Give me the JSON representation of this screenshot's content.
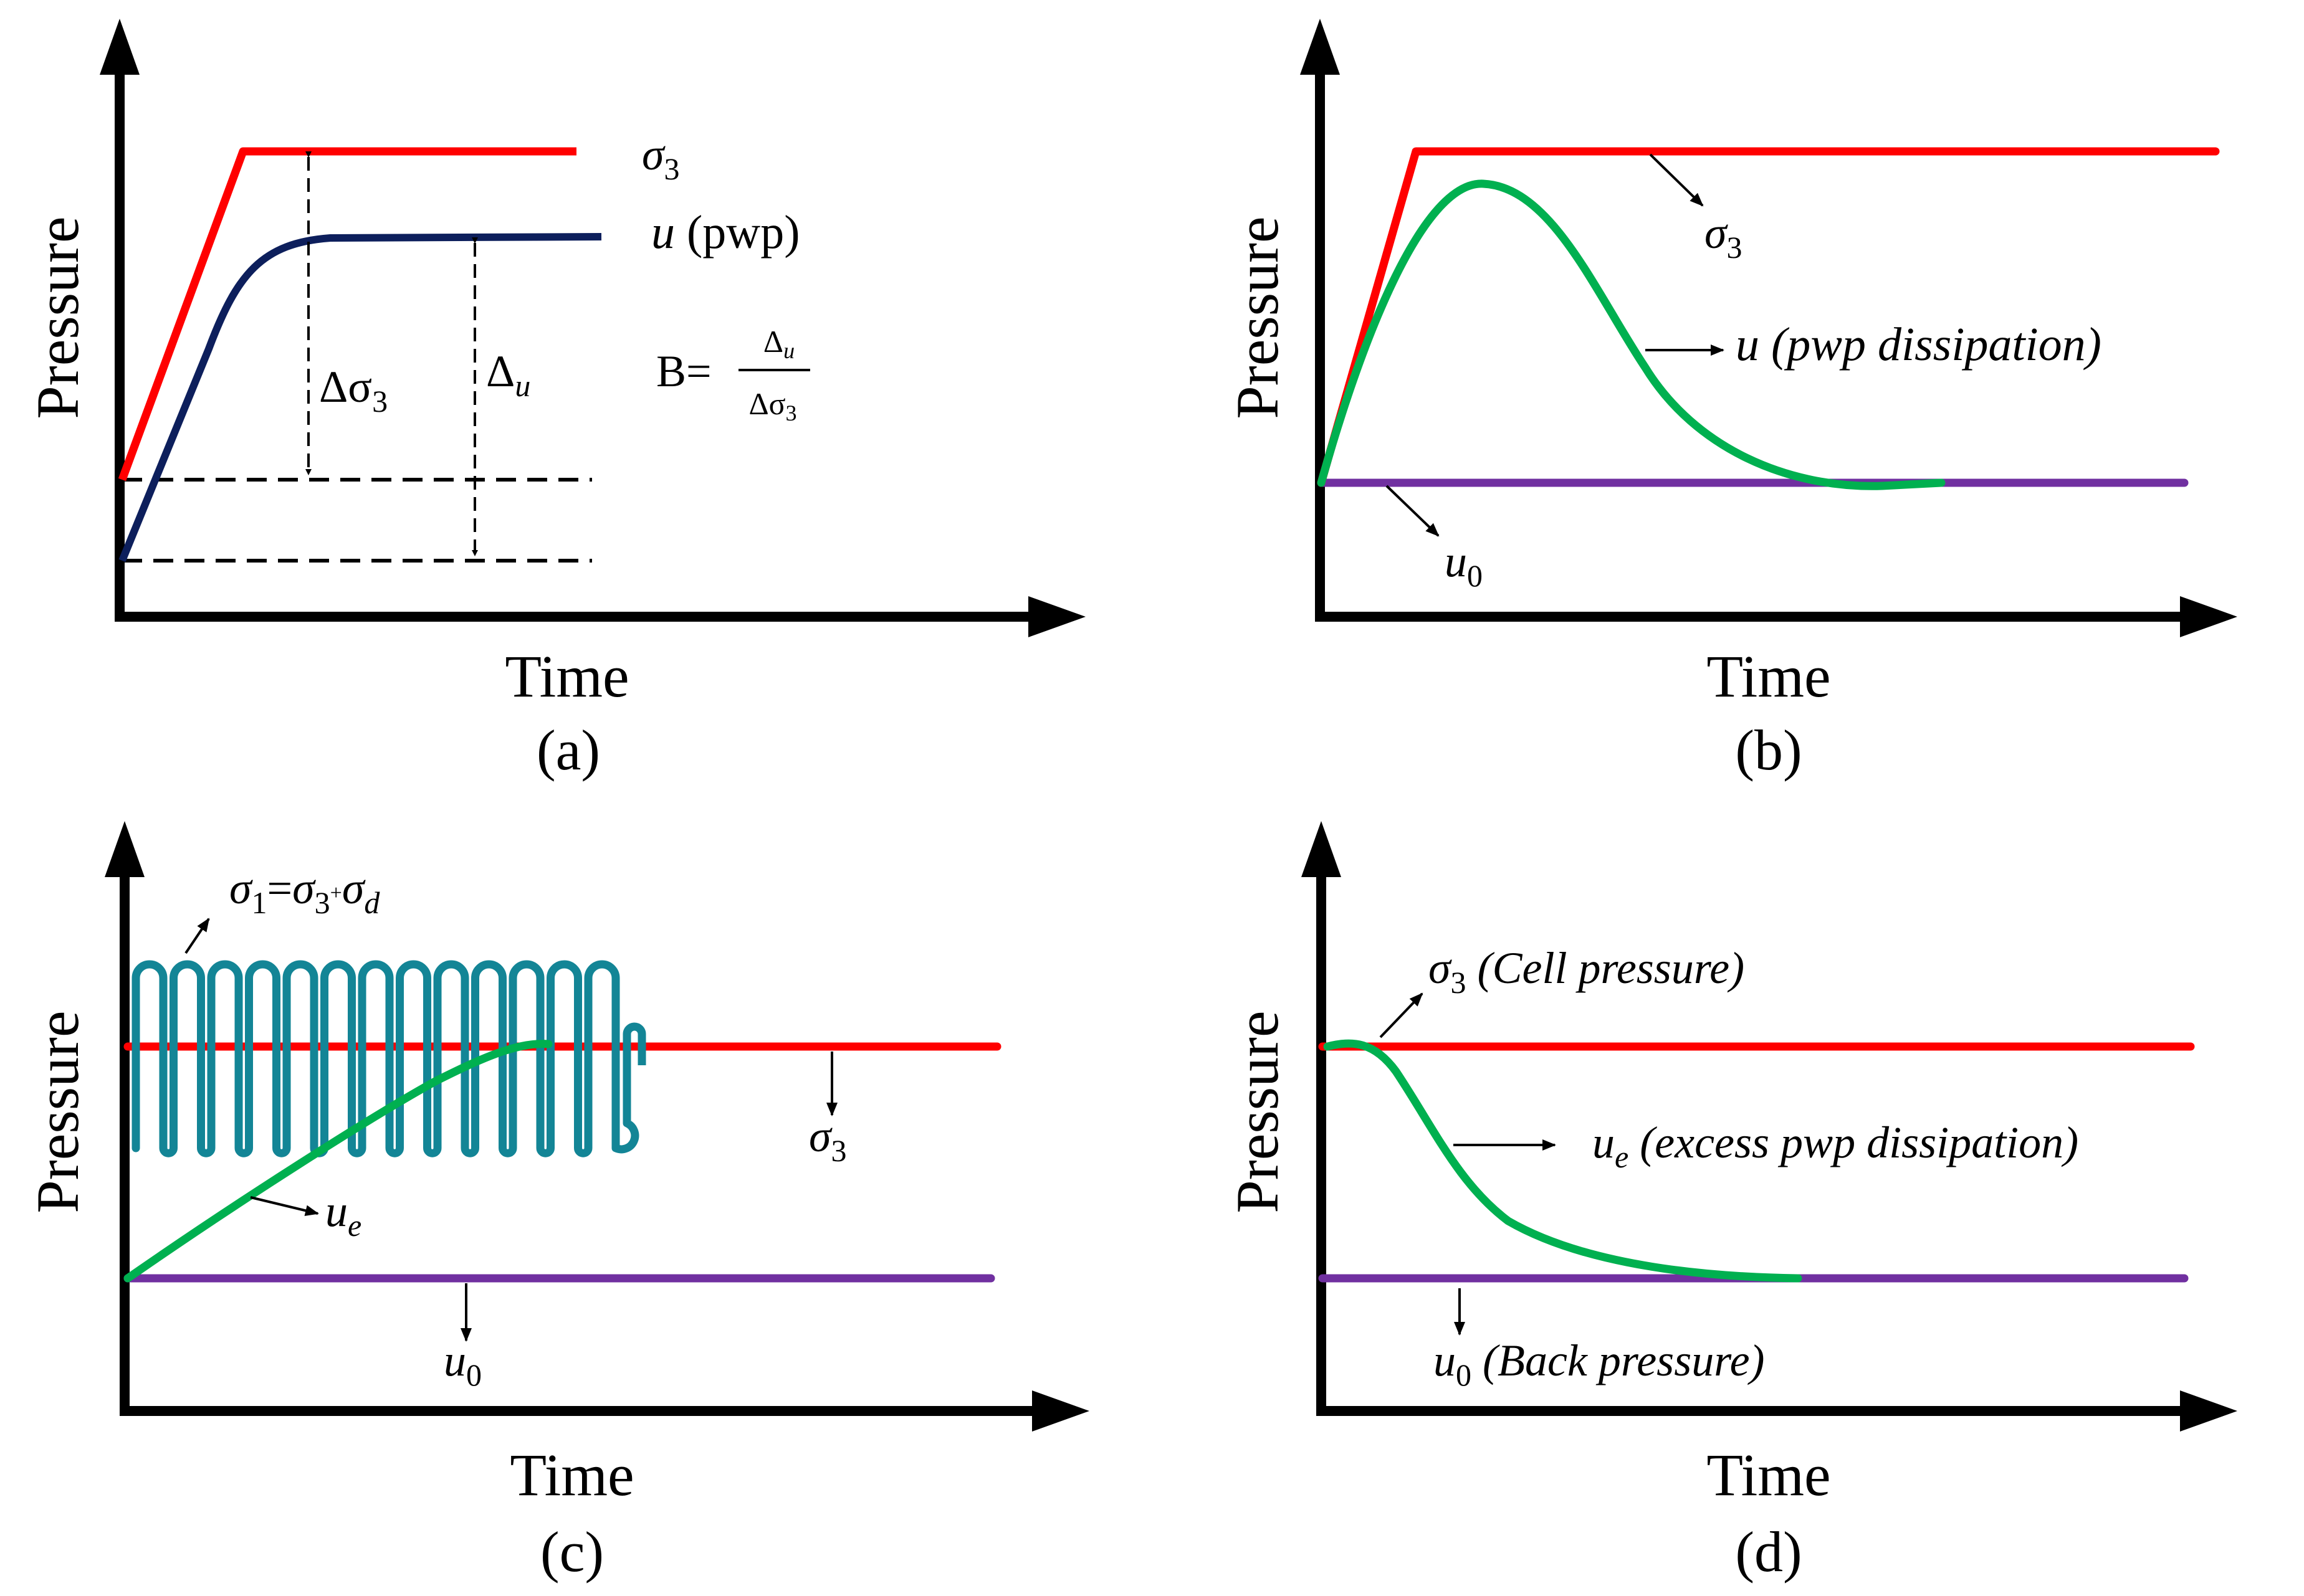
{
  "panels": {
    "a": {
      "caption": "(a)",
      "ylabel": "Pressure",
      "xlabel": "Time",
      "sigma3": {
        "sym": "σ",
        "sub": "3"
      },
      "u_label": {
        "sym": "u",
        "text": " (pwp)"
      },
      "delta_sigma3": {
        "sym": "Δσ",
        "sub": "3"
      },
      "delta_u": {
        "sym": "Δ",
        "sub": "u"
      },
      "b_formula": {
        "lhs": "B=",
        "num": "Δ",
        "num_sub": "u",
        "den": "Δσ",
        "den_sub": "3"
      }
    },
    "b": {
      "caption": "(b)",
      "ylabel": "Pressure",
      "xlabel": "Time",
      "sigma3": {
        "sym": "σ",
        "sub": "3"
      },
      "u_label": {
        "sym": "u",
        "text": " (pwp dissipation)"
      },
      "u0": {
        "sym": "u",
        "sub": "0"
      }
    },
    "c": {
      "caption": "(c)",
      "ylabel": "Pressure",
      "xlabel": "Time",
      "sigma1": {
        "s1": "σ",
        "s1sub": "1",
        "eq": "=",
        "s3": "σ",
        "s3sub": "3",
        "plus": "+",
        "sd": "σ",
        "sdsub": "d"
      },
      "sigma3": {
        "sym": "σ",
        "sub": "3"
      },
      "ue": {
        "sym": "u",
        "sub": "e"
      },
      "u0": {
        "sym": "u",
        "sub": "0"
      }
    },
    "d": {
      "caption": "(d)",
      "ylabel": "Pressure",
      "xlabel": "Time",
      "sigma3": {
        "sym": "σ",
        "sub": "3",
        "text": " (Cell pressure)"
      },
      "ue": {
        "sym": "u",
        "sub": "e",
        "text": " (excess pwp dissipation)"
      },
      "u0": {
        "sym": "u",
        "sub": "0",
        "text": " (Back pressure)"
      }
    }
  },
  "colors": {
    "axis": "#000000",
    "sigma3": "#ff0000",
    "pwp_a": "#0d1f5c",
    "pwp": "#00b050",
    "u0": "#7030a0",
    "sigma1": "#138596"
  }
}
